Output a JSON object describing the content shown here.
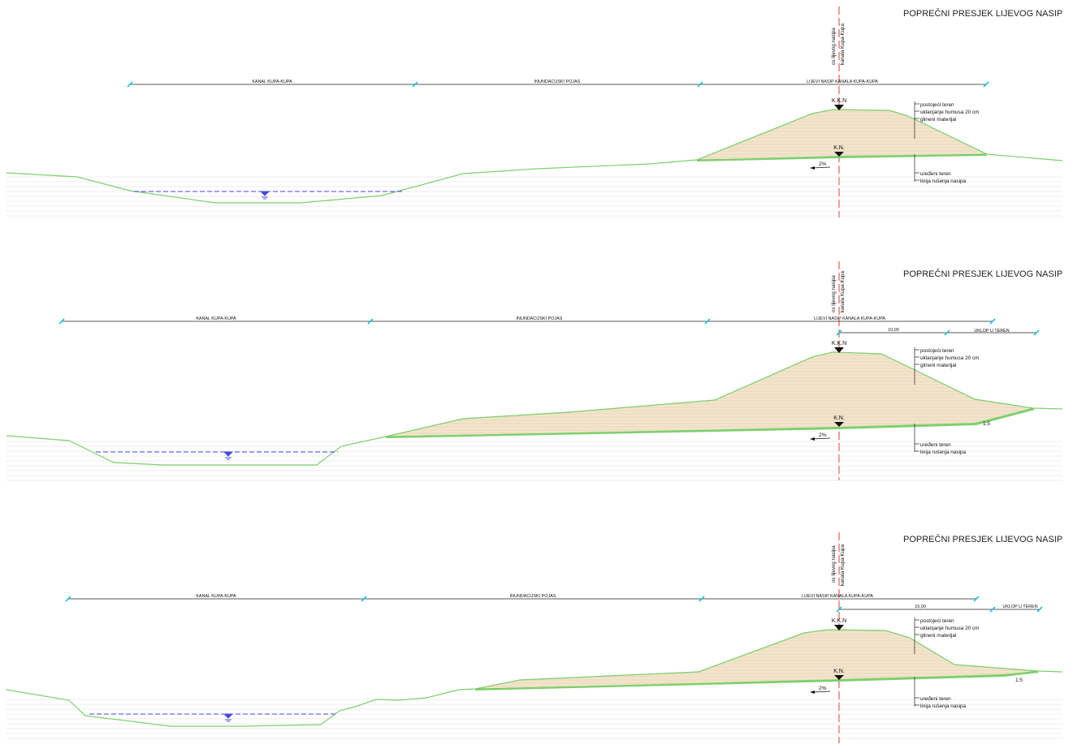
{
  "colors": {
    "ground": "#7ed06e",
    "ground_dark": "#3fae3a",
    "fill": "#f3e4cc",
    "water": "#4646e0",
    "axis": "#e23b2f",
    "dim": "#222222",
    "tick": "#19c4e0",
    "hatch": "#d9d9d9"
  },
  "sections": [
    {
      "title": "POPREČNI PRESJEK LIJEVOG NASIP",
      "axis_label_1": "os lijevog nasipa",
      "axis_label_2": "kanala Kupa-Kupa",
      "dim_kanal": "KANAL KUPA-KUPA",
      "dim_inund": "INUNDACIJSKI POJAS",
      "dim_nasip": "LIJEVI NASIP KANALA KUPA-KUPA",
      "sub_dim_value": "",
      "sub_dim_label": "",
      "level_top": "K.K.N",
      "level_bottom": "K.N.",
      "slope_pct": "2%",
      "slope_ratio": "",
      "note_1": "postojeći teren",
      "note_2": "uklanjanje humusa 20 cm",
      "note_3": "glineni materijal",
      "note_4": "uređeni teren",
      "note_5": "linija rušenja nasipa",
      "water_icon": "water-level-icon"
    },
    {
      "title": "POPREČNI PRESJEK LIJEVOG NASIP",
      "axis_label_1": "os lijevog nasipa",
      "axis_label_2": "kanala Kupa-Kupa",
      "dim_kanal": "KANAL KUPA-KUPA",
      "dim_inund": "INUNDACIJSKI POJAS",
      "dim_nasip": "LIJEVI NASIP KANALA KUPA-KUPA",
      "sub_dim_value": "10,00",
      "sub_dim_label": "UKLOP U TEREN",
      "level_top": "K.K.N",
      "level_bottom": "K.N.",
      "slope_pct": "2%",
      "slope_ratio": "1:5",
      "note_1": "postojeći teren",
      "note_2": "uklanjanje humusa 20 cm",
      "note_3": "glineni materijal",
      "note_4": "uređeni teren",
      "note_5": "linija rušenja nasipa",
      "water_icon": "water-level-icon"
    },
    {
      "title": "POPREČNI PRESJEK LIJEVOG NASIP",
      "axis_label_1": "os lijevog nasipa",
      "axis_label_2": "kanala Kupa-Kupa",
      "dim_kanal": "KANAL KUPA-KUPA",
      "dim_inund": "INUNDACIJSKI POJAS",
      "dim_nasip": "LIJEVI NASIP KANALA KUPA-KUPA",
      "sub_dim_value": "15,00",
      "sub_dim_label": "UKLOP U TEREN",
      "level_top": "K.K.N",
      "level_bottom": "K.N.",
      "slope_pct": "2%",
      "slope_ratio": "1:5",
      "note_1": "postojeći teren",
      "note_2": "uklanjanje humusa 20 cm",
      "note_3": "glineni materijal",
      "note_4": "uređeni teren",
      "note_5": "linija rušenja nasipa",
      "water_icon": "water-level-icon"
    }
  ]
}
